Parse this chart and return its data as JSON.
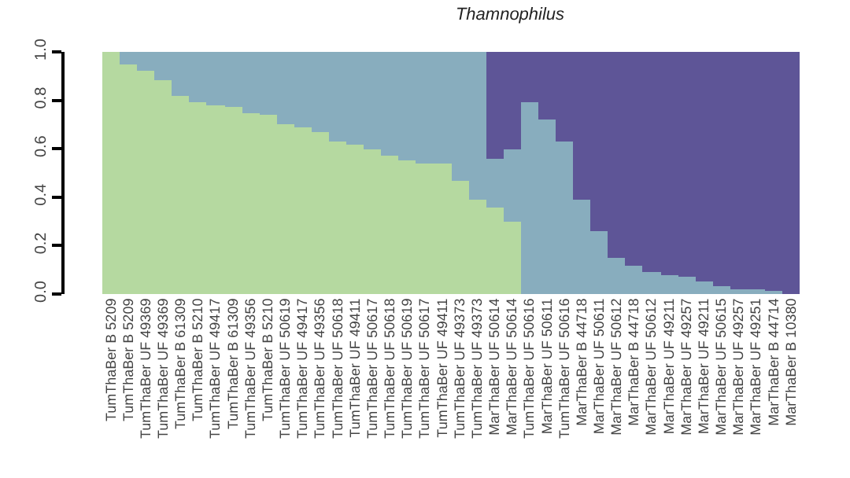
{
  "chart_data": {
    "type": "bar",
    "title": "Thamnophilus",
    "stacked": true,
    "categories": [
      "TumThaBer B 5209",
      "TumThaBer B 5209",
      "TumThaBer UF 49369",
      "TumThaBer UF 49369",
      "TumThaBer B 61309",
      "TumThaBer B 5210",
      "TumThaBer UF 49417",
      "TumThaBer B 61309",
      "TumThaBer UF 49356",
      "TumThaBer B 5210",
      "TumThaBer UF 50619",
      "TumThaBer UF 49417",
      "TumThaBer UF 49356",
      "TumThaBer UF 50618",
      "TumThaBer UF 49411",
      "TumThaBer UF 50617",
      "TumThaBer UF 50618",
      "TumThaBer UF 50619",
      "TumThaBer UF 50617",
      "TumThaBer UF 49411",
      "TumThaBer UF 49373",
      "TumThaBer UF 49373",
      "MarThaBer UF 50614",
      "MarThaBer UF 50614",
      "TumThaBer UF 50616",
      "MarThaBer UF 50611",
      "TumThaBer UF 50616",
      "MarThaBer B 44718",
      "MarThaBer UF 50611",
      "MarThaBer UF 50612",
      "MarThaBer B 44718",
      "MarThaBer UF 50612",
      "MarThaBer UF 49211",
      "MarThaBer UF 49257",
      "MarThaBer UF 49211",
      "MarThaBer UF 50615",
      "MarThaBer UF 49257",
      "MarThaBer UF 49251",
      "MarThaBer B 44714",
      "MarThaBer B 10380"
    ],
    "series": [
      {
        "color": "#b5d9a0",
        "values": [
          1.0,
          0.95,
          0.92,
          0.88,
          0.82,
          0.79,
          0.78,
          0.77,
          0.75,
          0.74,
          0.7,
          0.69,
          0.67,
          0.63,
          0.62,
          0.6,
          0.57,
          0.55,
          0.54,
          0.54,
          0.47,
          0.39,
          0.36,
          0.3,
          0,
          0,
          0,
          0,
          0,
          0,
          0,
          0,
          0,
          0,
          0,
          0,
          0,
          0,
          0,
          0
        ]
      },
      {
        "color": "#88adbe",
        "values": [
          0,
          0.05,
          0.08,
          0.12,
          0.18,
          0.21,
          0.22,
          0.23,
          0.25,
          0.26,
          0.3,
          0.31,
          0.33,
          0.37,
          0.38,
          0.4,
          0.43,
          0.45,
          0.46,
          0.46,
          0.53,
          0.61,
          0.2,
          0.3,
          0.79,
          0.72,
          0.63,
          0.39,
          0.26,
          0.15,
          0.12,
          0.09,
          0.08,
          0.07,
          0.05,
          0.03,
          0.02,
          0.02,
          0.01,
          0
        ]
      },
      {
        "color": "#5e5597",
        "values": [
          0,
          0,
          0,
          0,
          0,
          0,
          0,
          0,
          0,
          0,
          0,
          0,
          0,
          0,
          0,
          0,
          0,
          0,
          0,
          0,
          0,
          0,
          0.44,
          0.4,
          0.21,
          0.28,
          0.37,
          0.61,
          0.74,
          0.85,
          0.88,
          0.91,
          0.92,
          0.93,
          0.95,
          0.97,
          0.98,
          0.98,
          0.99,
          1.0
        ]
      }
    ],
    "ylim": [
      0,
      1
    ],
    "yticks": [
      {
        "value": 0,
        "label": "0.0"
      },
      {
        "value": 0.2,
        "label": "0.2"
      },
      {
        "value": 0.4,
        "label": "0.4"
      },
      {
        "value": 0.6,
        "label": "0.6"
      },
      {
        "value": 0.8,
        "label": "0.8"
      },
      {
        "value": 1,
        "label": "1.0"
      }
    ]
  }
}
